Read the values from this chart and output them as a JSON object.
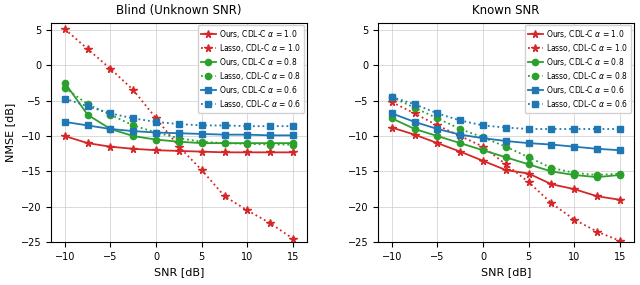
{
  "snr": [
    -10,
    -7.5,
    -5,
    -2.5,
    0,
    2.5,
    5,
    7.5,
    10,
    12.5,
    15
  ],
  "blind": {
    "ours_10": [
      -10.0,
      -11.0,
      -11.5,
      -11.8,
      -12.0,
      -12.1,
      -12.2,
      -12.3,
      -12.3,
      -12.3,
      -12.3
    ],
    "lasso_10": [
      5.1,
      2.3,
      -0.5,
      -3.5,
      -7.5,
      -11.5,
      -14.8,
      -18.5,
      -20.5,
      -22.3,
      -24.5
    ],
    "ours_08": [
      -2.5,
      -7.0,
      -9.0,
      -10.0,
      -10.5,
      -10.8,
      -11.0,
      -11.0,
      -11.0,
      -11.0,
      -11.0
    ],
    "lasso_08": [
      -3.2,
      -5.5,
      -7.0,
      -8.5,
      -9.5,
      -10.3,
      -10.8,
      -11.0,
      -11.1,
      -11.2,
      -11.2
    ],
    "ours_06": [
      -8.0,
      -8.5,
      -9.0,
      -9.3,
      -9.5,
      -9.6,
      -9.7,
      -9.8,
      -9.8,
      -9.9,
      -9.9
    ],
    "lasso_06": [
      -4.7,
      -5.8,
      -6.8,
      -7.5,
      -8.0,
      -8.3,
      -8.5,
      -8.5,
      -8.6,
      -8.6,
      -8.6
    ]
  },
  "known": {
    "ours_10": [
      -8.8,
      -9.8,
      -11.0,
      -12.2,
      -13.5,
      -14.8,
      -15.3,
      -16.8,
      -17.5,
      -18.5,
      -19.0
    ],
    "lasso_10": [
      -5.2,
      -6.8,
      -8.5,
      -10.0,
      -11.5,
      -14.0,
      -16.5,
      -19.5,
      -21.8,
      -23.5,
      -24.8
    ],
    "ours_08": [
      -7.5,
      -9.0,
      -10.0,
      -11.0,
      -12.0,
      -13.0,
      -14.0,
      -15.0,
      -15.5,
      -15.8,
      -15.5
    ],
    "lasso_08": [
      -4.5,
      -6.0,
      -7.5,
      -9.0,
      -10.2,
      -11.5,
      -13.0,
      -14.5,
      -15.2,
      -15.5,
      -15.3
    ],
    "ours_06": [
      -6.8,
      -8.0,
      -9.0,
      -9.8,
      -10.3,
      -10.7,
      -11.0,
      -11.2,
      -11.5,
      -11.8,
      -12.0
    ],
    "lasso_06": [
      -4.5,
      -5.5,
      -6.8,
      -7.8,
      -8.5,
      -8.8,
      -9.0,
      -9.0,
      -9.0,
      -9.0,
      -9.0
    ]
  },
  "colors": {
    "red": "#d62728",
    "green": "#2ca02c",
    "blue": "#1f77b4"
  },
  "title_blind": "Blind (Unknown SNR)",
  "title_known": "Known SNR",
  "xlabel": "SNR [dB]",
  "ylabel": "NMSE [dB]",
  "ylim": [
    -25,
    6
  ],
  "xlim": [
    -11.5,
    16.5
  ],
  "yticks": [
    -25,
    -20,
    -15,
    -10,
    -5,
    0,
    5
  ],
  "xticks": [
    -10,
    -5,
    0,
    5,
    10,
    15
  ],
  "legend_labels": [
    "Ours, CDL-C $\\alpha$ = 1.0",
    "Lasso, CDL-C $\\alpha$ = 1.0",
    "Ours, CDL-C $\\alpha$ = 0.8",
    "Lasso, CDL-C $\\alpha$ = 0.8",
    "Ours, CDL-C $\\alpha$ = 0.6",
    "Lasso, CDL-C $\\alpha$ = 0.6"
  ]
}
